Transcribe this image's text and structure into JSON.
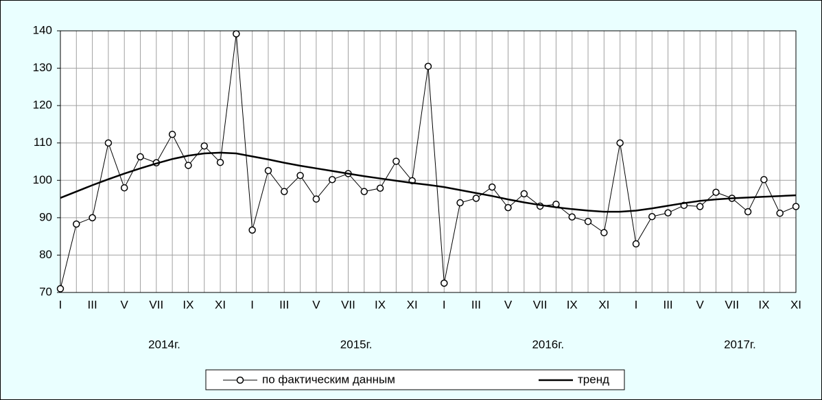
{
  "chart_data": {
    "type": "line",
    "categories": [
      "I",
      null,
      "III",
      null,
      "V",
      null,
      "VII",
      null,
      "IX",
      null,
      "XI",
      null,
      "I",
      null,
      "III",
      null,
      "V",
      null,
      "VII",
      null,
      "IX",
      null,
      "XI",
      null,
      "I",
      null,
      "III",
      null,
      "V",
      null,
      "VII",
      null,
      "IX",
      null,
      "XI",
      null,
      "I",
      null,
      "III",
      null,
      "V",
      null,
      "VII",
      null,
      "IX",
      null,
      "XI"
    ],
    "year_labels": [
      "2014г.",
      "2015г.",
      "2016г.",
      "2017г."
    ],
    "series": [
      {
        "name": "по фактическим данным",
        "color": "#000000",
        "marker": "circle",
        "values": [
          71,
          88.3,
          90,
          110,
          98,
          106.3,
          104.7,
          112.3,
          104,
          109.2,
          104.8,
          139.2,
          86.7,
          102.6,
          97,
          101.3,
          95,
          100.2,
          101.8,
          97,
          97.9,
          105.1,
          99.9,
          130.5,
          72.5,
          94,
          95.2,
          98.2,
          92.7,
          96.4,
          93.1,
          93.6,
          90.2,
          89,
          86,
          110,
          83,
          90.3,
          91.3,
          93.3,
          93,
          96.8,
          95.2,
          91.6,
          100.2,
          91.2,
          93
        ]
      },
      {
        "name": "тренд",
        "color": "#000000",
        "values": [
          95.3,
          97,
          98.7,
          100.3,
          101.8,
          103.2,
          104.5,
          105.7,
          106.6,
          107.2,
          107.4,
          107.2,
          106.4,
          105.6,
          104.7,
          103.9,
          103.2,
          102.5,
          101.8,
          101.1,
          100.5,
          99.9,
          99.3,
          98.8,
          98.2,
          97.4,
          96.6,
          95.8,
          94.9,
          94.1,
          93.4,
          92.8,
          92.3,
          91.9,
          91.6,
          91.6,
          91.9,
          92.5,
          93.2,
          93.9,
          94.5,
          94.9,
          95.2,
          95.4,
          95.6,
          95.8,
          96
        ]
      }
    ],
    "ylim": [
      70,
      140
    ],
    "yticks": [
      70,
      80,
      90,
      100,
      110,
      120,
      130,
      140
    ],
    "grid": true,
    "legend": "bottom"
  }
}
